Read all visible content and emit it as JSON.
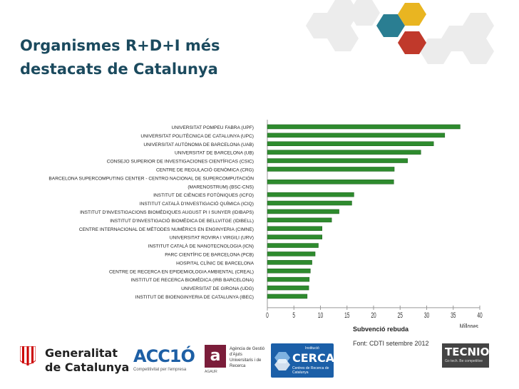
{
  "title": "Organismes R+D+I més destacats de Catalunya",
  "chart_data": {
    "type": "bar",
    "orientation": "horizontal",
    "bar_color": "#2e8b2e",
    "categories": [
      "UNIVERSITAT POMPEU FABRA (UPF)",
      "UNIVERSITAT POLITÈCNICA DE CATALUNYA (UPC)",
      "UNIVERSITAT AUTÒNOMA DE BARCELONA (UAB)",
      "UNIVERSITAT DE BARCELONA (UB)",
      "CONSEJO SUPERIOR DE INVESTIGACIONES CIENTÍFICAS (CSIC)",
      "CENTRE DE REGULACIÓ GENÒMICA (CRG)",
      "BARCELONA SUPERCOMPUTING CENTER - CENTRO NACIONAL DE SUPERCOMPUTACIÓN (MARENOSTRUM) (BSC-CNS)",
      "INSTITUT DE CIÈNCIES FOTÒNIQUES (ICFO)",
      "INSTITUT CATALÀ D'INVESTIGACIÓ QUÍMICA (ICIQ)",
      "INSTITUT D'INVESTIGACIONS BIOMÈDIQUES AUGUST PI I SUNYER (IDIBAPS)",
      "INSTITUT D'INVESTIGACIÓ BIOMÈDICA DE BELLVITGE (IDIBELL)",
      "CENTRE INTERNACIONAL DE MÈTODES NUMÈRICS EN ENGINYERIA (CIMNE)",
      "UNIVERSITAT ROVIRA I VIRGILI (URV)",
      "INSTITUT CATALÀ DE NANOTECNOLOGIA (ICN)",
      "PARC CIENTÍFIC DE BARCELONA (PCB)",
      "HOSPITAL CLÍNIC DE BARCELONA",
      "CENTRE DE RECERCA EN EPIDEMIOLOGIA AMBIENTAL (CREAL)",
      "INSTITUT DE RECERCA BIOMÈDICA (IRB BARCELONA)",
      "UNIVERSITAT DE GIRONA (UDG)",
      "INSTITUT DE BIOENGINYERIA DE CATALUNYA (IBEC)"
    ],
    "values": [
      36.3,
      33.4,
      31.3,
      28.9,
      26.4,
      23.9,
      23.8,
      16.3,
      15.9,
      13.5,
      12.1,
      10.3,
      10.3,
      9.6,
      9.0,
      8.4,
      8.1,
      7.9,
      7.8,
      7.5
    ],
    "xlim": [
      0,
      40
    ],
    "xticks": [
      "0",
      "5",
      "10",
      "15",
      "20",
      "25",
      "30",
      "35",
      "40"
    ],
    "xunit": "Millones",
    "xlabel": "Subvenció rebuda",
    "grid": false
  },
  "source": "Font: CDTI setembre 2012",
  "logos": {
    "gencat_line1": "Generalitat",
    "gencat_line2": "de Catalunya",
    "accio": "ACC1Ó",
    "accio_sub": "Competitivitat per l'empresa",
    "agaur_letter": "a",
    "agaur_text": "Agència de Gestió d'Ajuts Universitaris i de Recerca",
    "agaur_acronym": "AGAUR",
    "cerca_institucio": "Institució",
    "cerca_name": "CERCA",
    "cerca_sub": "Centres de Recerca de Catalunya",
    "tecnio": "TECNIO",
    "tecnio_sub": "Go tech. Be competitive"
  },
  "colors": {
    "title": "#1b4a5e",
    "hex_teal": "#2a7e92",
    "hex_gold": "#e9b521",
    "hex_red": "#c0392b",
    "hex_grey": "#e8e8e8"
  }
}
